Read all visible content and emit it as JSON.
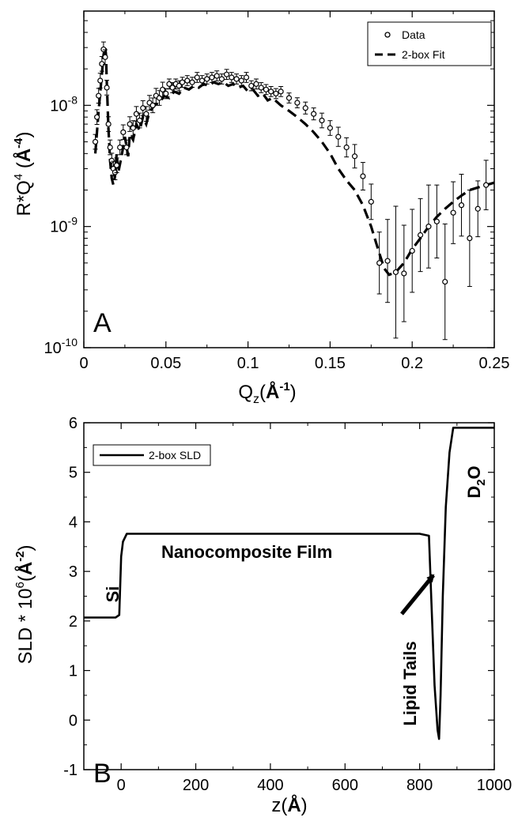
{
  "chart_data": [
    {
      "type": "scatter",
      "panel_letter": "A",
      "xlabel": {
        "main": "Q",
        "sub": "z",
        "paren_open": "(",
        "bold": "Å",
        "sup": "-1",
        "paren_close": ")"
      },
      "ylabel": {
        "main": "R*Q",
        "sup1": "4",
        "paren_open": " (",
        "bold": "Å",
        "sup2": "-4",
        "paren_close": ")"
      },
      "xlim": [
        0,
        0.25
      ],
      "ylim": [
        1e-10,
        6e-08
      ],
      "yscale": "log",
      "grid": false,
      "legend_position": "top-right",
      "x_ticks": [
        "0",
        "0.05",
        "0.1",
        "0.15",
        "0.2",
        "0.25"
      ],
      "y_ticks": [
        {
          "base": "10",
          "exp": "-10"
        },
        {
          "base": "10",
          "exp": "-9"
        },
        {
          "base": "10",
          "exp": "-8"
        }
      ],
      "legend": [
        "Data",
        "2-box Fit"
      ],
      "series": [
        {
          "name": "Data",
          "style": "open-circles-with-error-bars",
          "x": [
            0.007,
            0.008,
            0.009,
            0.01,
            0.011,
            0.012,
            0.013,
            0.014,
            0.015,
            0.016,
            0.017,
            0.018,
            0.019,
            0.02,
            0.022,
            0.024,
            0.026,
            0.028,
            0.03,
            0.032,
            0.034,
            0.036,
            0.038,
            0.04,
            0.042,
            0.044,
            0.046,
            0.048,
            0.05,
            0.052,
            0.054,
            0.056,
            0.058,
            0.06,
            0.063,
            0.066,
            0.069,
            0.072,
            0.075,
            0.078,
            0.081,
            0.084,
            0.087,
            0.09,
            0.093,
            0.096,
            0.099,
            0.102,
            0.105,
            0.108,
            0.111,
            0.114,
            0.117,
            0.12,
            0.125,
            0.13,
            0.135,
            0.14,
            0.145,
            0.15,
            0.155,
            0.16,
            0.165,
            0.17,
            0.175,
            0.18,
            0.185,
            0.19,
            0.195,
            0.2,
            0.205,
            0.21,
            0.215,
            0.22,
            0.225,
            0.23,
            0.235,
            0.24,
            0.245
          ],
          "y": [
            5e-09,
            8e-09,
            1.2e-08,
            1.6e-08,
            2.2e-08,
            2.9e-08,
            2.5e-08,
            1.4e-08,
            7e-09,
            4.5e-09,
            3.5e-09,
            3e-09,
            2.8e-09,
            3.2e-09,
            4.5e-09,
            6e-09,
            4.5e-09,
            7e-09,
            6.5e-09,
            8.5e-09,
            7.5e-09,
            9.5e-09,
            8.5e-09,
            1.05e-08,
            1e-08,
            1.2e-08,
            1.15e-08,
            1.35e-08,
            1.25e-08,
            1.5e-08,
            1.4e-08,
            1.5e-08,
            1.45e-08,
            1.55e-08,
            1.6e-08,
            1.55e-08,
            1.7e-08,
            1.6e-08,
            1.65e-08,
            1.7e-08,
            1.75e-08,
            1.65e-08,
            1.8e-08,
            1.7e-08,
            1.65e-08,
            1.6e-08,
            1.7e-08,
            1.45e-08,
            1.5e-08,
            1.4e-08,
            1.35e-08,
            1.3e-08,
            1.25e-08,
            1.3e-08,
            1.15e-08,
            1.05e-08,
            9.5e-09,
            8.5e-09,
            7.5e-09,
            6.5e-09,
            5.5e-09,
            4.5e-09,
            3.8e-09,
            2.6e-09,
            1.6e-09,
            5e-10,
            5.2e-10,
            4.2e-10,
            4.1e-10,
            6.3e-10,
            8.5e-10,
            1e-09,
            1.1e-09,
            3.5e-10,
            1.3e-09,
            1.5e-09,
            8e-10,
            1.4e-09,
            2.2e-09
          ],
          "err_factor": [
            1.15,
            1.15,
            1.15,
            1.15,
            1.15,
            1.15,
            1.15,
            1.15,
            1.15,
            1.15,
            1.15,
            1.15,
            1.15,
            1.15,
            1.15,
            1.15,
            1.15,
            1.15,
            1.15,
            1.15,
            1.15,
            1.15,
            1.15,
            1.15,
            1.15,
            1.15,
            1.15,
            1.15,
            1.1,
            1.1,
            1.1,
            1.1,
            1.1,
            1.1,
            1.1,
            1.1,
            1.1,
            1.1,
            1.1,
            1.1,
            1.1,
            1.1,
            1.1,
            1.1,
            1.1,
            1.1,
            1.1,
            1.1,
            1.1,
            1.1,
            1.1,
            1.1,
            1.1,
            1.1,
            1.1,
            1.1,
            1.12,
            1.12,
            1.15,
            1.15,
            1.2,
            1.2,
            1.25,
            1.3,
            1.4,
            1.8,
            2.2,
            3.5,
            2.5,
            2.2,
            2.0,
            2.2,
            2.0,
            3.0,
            1.8,
            1.8,
            2.5,
            1.7,
            1.6
          ]
        },
        {
          "name": "2-box Fit",
          "style": "dashed-line",
          "x": [
            0.007,
            0.009,
            0.011,
            0.012,
            0.013,
            0.0135,
            0.014,
            0.015,
            0.016,
            0.017,
            0.018,
            0.019,
            0.02,
            0.021,
            0.023,
            0.025,
            0.027,
            0.028,
            0.03,
            0.032,
            0.034,
            0.036,
            0.038,
            0.04,
            0.043,
            0.046,
            0.049,
            0.052,
            0.055,
            0.058,
            0.061,
            0.064,
            0.067,
            0.07,
            0.073,
            0.076,
            0.079,
            0.082,
            0.085,
            0.088,
            0.091,
            0.094,
            0.097,
            0.1,
            0.103,
            0.106,
            0.109,
            0.112,
            0.115,
            0.12,
            0.125,
            0.13,
            0.135,
            0.14,
            0.145,
            0.15,
            0.155,
            0.16,
            0.165,
            0.17,
            0.175,
            0.18,
            0.183,
            0.186,
            0.19,
            0.195,
            0.2,
            0.205,
            0.21,
            0.215,
            0.22,
            0.225,
            0.23,
            0.235,
            0.24,
            0.245,
            0.25
          ],
          "y": [
            4e-09,
            9e-09,
            1.8e-08,
            2.6e-08,
            3.1e-08,
            2.6e-08,
            1.5e-08,
            6.5e-09,
            3.5e-09,
            2.5e-09,
            2.2e-09,
            2.6e-09,
            4e-09,
            2.8e-09,
            3.8e-09,
            5.5e-09,
            3.8e-09,
            5.8e-09,
            5.2e-09,
            7e-09,
            6.2e-09,
            8e-09,
            7e-09,
            8.8e-09,
            1e-08,
            1.05e-08,
            1.2e-08,
            1.15e-08,
            1.3e-08,
            1.25e-08,
            1.4e-08,
            1.35e-08,
            1.45e-08,
            1.4e-08,
            1.5e-08,
            1.45e-08,
            1.55e-08,
            1.5e-08,
            1.55e-08,
            1.45e-08,
            1.5e-08,
            1.4e-08,
            1.45e-08,
            1.3e-08,
            1.35e-08,
            1.2e-08,
            1.25e-08,
            1.1e-08,
            1.15e-08,
            1e-08,
            9e-09,
            8e-09,
            7e-09,
            6e-09,
            5e-09,
            4e-09,
            3e-09,
            2.4e-09,
            2e-09,
            1.5e-09,
            1e-09,
            6e-10,
            4.5e-10,
            4e-10,
            4.2e-10,
            5e-10,
            6.5e-10,
            8e-10,
            1e-09,
            1.2e-09,
            1.4e-09,
            1.6e-09,
            1.8e-09,
            2e-09,
            2.1e-09,
            2.2e-09,
            2.3e-09
          ]
        }
      ]
    },
    {
      "type": "line",
      "panel_letter": "B",
      "xlabel": {
        "main": "z",
        "paren_open": "(",
        "bold": "Å",
        "paren_close": ")"
      },
      "ylabel": {
        "main": "SLD * 10",
        "sup1": "6",
        "paren_open": "(",
        "bold": "Å",
        "sup2": "-2",
        "paren_close": ")"
      },
      "xlim": [
        -100,
        1000
      ],
      "ylim": [
        -1,
        6
      ],
      "grid": false,
      "legend_position": "top-left",
      "x_ticks": [
        "0",
        "200",
        "400",
        "600",
        "800",
        "1000"
      ],
      "y_ticks": [
        "-1",
        "0",
        "1",
        "2",
        "3",
        "4",
        "5",
        "6"
      ],
      "legend": [
        "2-box SLD"
      ],
      "annotations": {
        "si": "Si",
        "film": "Nanocomposite Film",
        "lipid": "Lipid Tails",
        "d2o": {
          "main": "D",
          "sub": "2",
          "tail": "O"
        }
      },
      "series": [
        {
          "name": "2-box SLD",
          "x": [
            -100,
            -15,
            -5,
            0,
            5,
            15,
            100,
            200,
            300,
            400,
            500,
            600,
            700,
            800,
            825,
            832,
            840,
            848,
            852,
            856,
            862,
            870,
            880,
            890,
            950,
            1000
          ],
          "y": [
            2.07,
            2.07,
            2.12,
            3.3,
            3.6,
            3.76,
            3.76,
            3.76,
            3.76,
            3.76,
            3.76,
            3.76,
            3.76,
            3.76,
            3.72,
            2.3,
            0.7,
            -0.2,
            -0.38,
            0.5,
            2.5,
            4.3,
            5.4,
            5.9,
            5.9,
            5.9
          ]
        }
      ]
    }
  ]
}
